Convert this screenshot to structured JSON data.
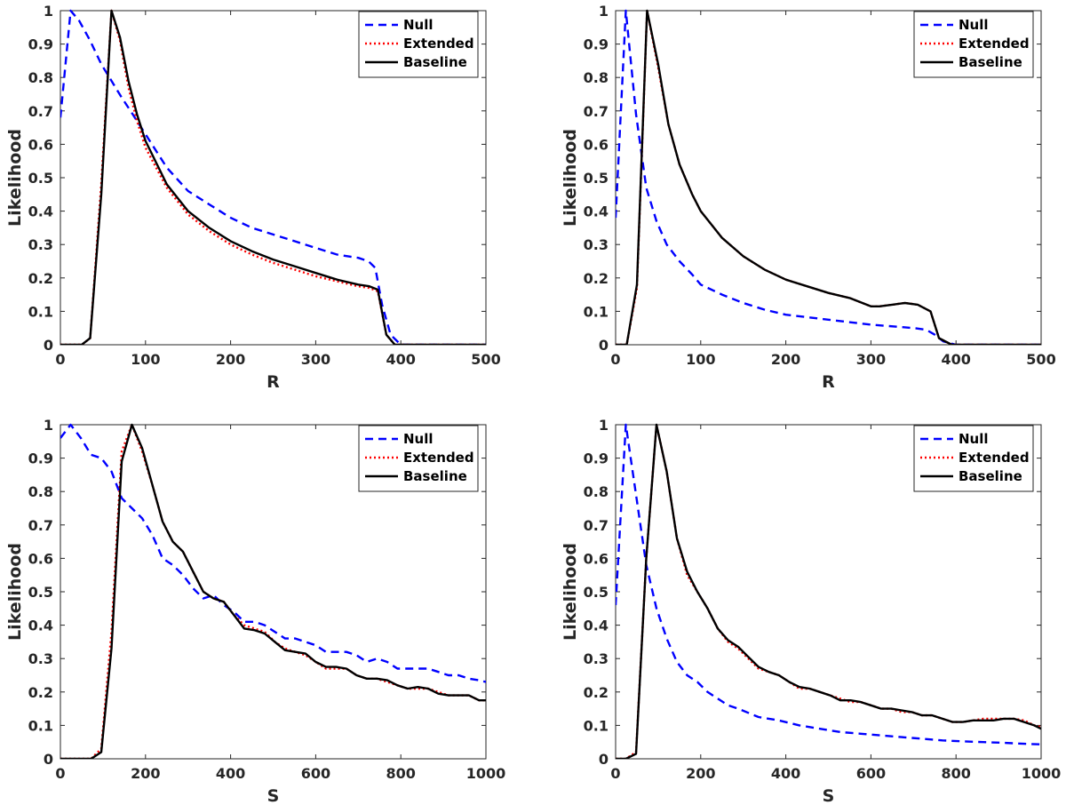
{
  "chart_data": [
    {
      "type": "line",
      "title": "",
      "xlabel": "R",
      "ylabel": "Likelihood",
      "xlim": [
        0,
        500
      ],
      "ylim": [
        0,
        1
      ],
      "xticks": [
        0,
        100,
        200,
        300,
        400,
        500
      ],
      "yticks": [
        0,
        0.1,
        0.2,
        0.3,
        0.4,
        0.5,
        0.6,
        0.7,
        0.8,
        0.9,
        1
      ],
      "ytick_labels": [
        "0",
        "0.1",
        "0.2",
        "0.3",
        "0.4",
        "0.5",
        "0.6",
        "0.7",
        "0.8",
        "0.9",
        "1"
      ],
      "grid": false,
      "legend": "top-right",
      "series": [
        {
          "name": "Null",
          "color": "#0000ff",
          "style": "dashed",
          "x": [
            0,
            12,
            22,
            35,
            48,
            60,
            72,
            85,
            100,
            125,
            150,
            175,
            200,
            225,
            250,
            275,
            300,
            325,
            350,
            362,
            370,
            378,
            388,
            400,
            500
          ],
          "y": [
            0.68,
            1.0,
            0.97,
            0.91,
            0.84,
            0.79,
            0.74,
            0.69,
            0.63,
            0.53,
            0.46,
            0.42,
            0.38,
            0.35,
            0.33,
            0.31,
            0.29,
            0.27,
            0.26,
            0.25,
            0.23,
            0.12,
            0.03,
            0.0,
            0.0
          ]
        },
        {
          "name": "Extended",
          "color": "#ff0000",
          "style": "dotted",
          "x": [
            0,
            25,
            35,
            48,
            60,
            70,
            80,
            90,
            100,
            125,
            150,
            175,
            200,
            225,
            250,
            275,
            300,
            325,
            350,
            363,
            373,
            383,
            393,
            500
          ],
          "y": [
            0,
            0,
            0.02,
            0.48,
            1.0,
            0.91,
            0.77,
            0.67,
            0.59,
            0.47,
            0.39,
            0.34,
            0.3,
            0.27,
            0.245,
            0.225,
            0.205,
            0.19,
            0.175,
            0.17,
            0.16,
            0.03,
            0.0,
            0.0
          ]
        },
        {
          "name": "Baseline",
          "color": "#000000",
          "style": "solid",
          "x": [
            0,
            25,
            35,
            48,
            60,
            70,
            80,
            90,
            100,
            125,
            150,
            175,
            200,
            225,
            250,
            275,
            300,
            325,
            350,
            363,
            373,
            383,
            393,
            500
          ],
          "y": [
            0,
            0,
            0.02,
            0.45,
            1.0,
            0.92,
            0.79,
            0.69,
            0.61,
            0.48,
            0.4,
            0.35,
            0.31,
            0.28,
            0.255,
            0.235,
            0.215,
            0.195,
            0.18,
            0.175,
            0.165,
            0.03,
            0.0,
            0.0
          ]
        }
      ]
    },
    {
      "type": "line",
      "title": "",
      "xlabel": "R",
      "ylabel": "Likelihood",
      "xlim": [
        0,
        500
      ],
      "ylim": [
        0,
        1
      ],
      "xticks": [
        0,
        100,
        200,
        300,
        400,
        500
      ],
      "yticks": [
        0,
        0.1,
        0.2,
        0.3,
        0.4,
        0.5,
        0.6,
        0.7,
        0.8,
        0.9,
        1
      ],
      "ytick_labels": [
        "0",
        "0.1",
        "0.2",
        "0.3",
        "0.4",
        "0.5",
        "0.6",
        "0.7",
        "0.8",
        "0.9",
        "1"
      ],
      "grid": false,
      "legend": "top-right",
      "series": [
        {
          "name": "Null",
          "color": "#0000ff",
          "style": "dashed",
          "x": [
            0,
            12,
            24,
            36,
            48,
            60,
            75,
            90,
            100,
            125,
            150,
            175,
            200,
            250,
            300,
            350,
            365,
            375,
            385,
            400,
            500
          ],
          "y": [
            0.38,
            1.0,
            0.69,
            0.47,
            0.37,
            0.3,
            0.25,
            0.21,
            0.18,
            0.15,
            0.125,
            0.105,
            0.09,
            0.075,
            0.06,
            0.05,
            0.045,
            0.03,
            0.01,
            0.0,
            0.0
          ]
        },
        {
          "name": "Extended",
          "color": "#ff0000",
          "style": "dotted",
          "x": [
            0,
            13,
            25,
            37,
            50,
            62,
            75,
            90,
            100,
            125,
            150,
            175,
            200,
            225,
            250,
            275,
            300,
            310,
            325,
            340,
            355,
            370,
            380,
            395,
            500
          ],
          "y": [
            0,
            0,
            0.17,
            1.0,
            0.83,
            0.66,
            0.54,
            0.45,
            0.4,
            0.32,
            0.265,
            0.225,
            0.195,
            0.175,
            0.155,
            0.14,
            0.115,
            0.115,
            0.12,
            0.125,
            0.12,
            0.1,
            0.02,
            0.0,
            0.0
          ]
        },
        {
          "name": "Baseline",
          "color": "#000000",
          "style": "solid",
          "x": [
            0,
            13,
            25,
            37,
            50,
            62,
            75,
            90,
            100,
            125,
            150,
            175,
            200,
            225,
            250,
            275,
            300,
            310,
            325,
            340,
            355,
            370,
            380,
            395,
            500
          ],
          "y": [
            0,
            0,
            0.18,
            1.0,
            0.84,
            0.66,
            0.54,
            0.45,
            0.4,
            0.32,
            0.265,
            0.225,
            0.195,
            0.175,
            0.155,
            0.14,
            0.115,
            0.115,
            0.12,
            0.125,
            0.12,
            0.1,
            0.02,
            0.0,
            0.0
          ]
        }
      ]
    },
    {
      "type": "line",
      "title": "",
      "xlabel": "S",
      "ylabel": "Likelihood",
      "xlim": [
        0,
        1000
      ],
      "ylim": [
        0,
        1
      ],
      "xticks": [
        0,
        200,
        400,
        600,
        800,
        1000
      ],
      "yticks": [
        0,
        0.1,
        0.2,
        0.3,
        0.4,
        0.5,
        0.6,
        0.7,
        0.8,
        0.9,
        1
      ],
      "ytick_labels": [
        "0",
        "0.1",
        "0.2",
        "0.3",
        "0.4",
        "0.5",
        "0.6",
        "0.7",
        "0.8",
        "0.9",
        "1"
      ],
      "grid": false,
      "legend": "top-right",
      "series": [
        {
          "name": "Null",
          "color": "#0000ff",
          "style": "dashed",
          "x": [
            0,
            24,
            48,
            72,
            96,
            120,
            144,
            168,
            192,
            216,
            240,
            264,
            288,
            312,
            336,
            360,
            384,
            408,
            432,
            456,
            480,
            504,
            528,
            552,
            576,
            600,
            624,
            648,
            672,
            696,
            720,
            744,
            768,
            792,
            816,
            840,
            864,
            888,
            912,
            936,
            960,
            984,
            1000
          ],
          "y": [
            0.96,
            1.0,
            0.96,
            0.91,
            0.9,
            0.86,
            0.78,
            0.75,
            0.72,
            0.67,
            0.6,
            0.58,
            0.55,
            0.51,
            0.48,
            0.49,
            0.46,
            0.44,
            0.41,
            0.41,
            0.4,
            0.38,
            0.36,
            0.36,
            0.35,
            0.34,
            0.32,
            0.32,
            0.32,
            0.31,
            0.29,
            0.3,
            0.29,
            0.27,
            0.27,
            0.27,
            0.27,
            0.26,
            0.25,
            0.25,
            0.24,
            0.235,
            0.23
          ]
        },
        {
          "name": "Extended",
          "color": "#ff0000",
          "style": "dotted",
          "x": [
            0,
            72,
            96,
            120,
            144,
            168,
            192,
            216,
            240,
            264,
            288,
            312,
            336,
            360,
            384,
            408,
            432,
            456,
            480,
            504,
            528,
            552,
            576,
            600,
            624,
            648,
            672,
            696,
            720,
            744,
            768,
            792,
            816,
            840,
            864,
            888,
            912,
            936,
            960,
            984,
            1000
          ],
          "y": [
            0,
            0,
            0.03,
            0.38,
            0.92,
            1.0,
            0.92,
            0.82,
            0.71,
            0.65,
            0.62,
            0.56,
            0.5,
            0.48,
            0.47,
            0.43,
            0.4,
            0.39,
            0.38,
            0.35,
            0.33,
            0.32,
            0.31,
            0.29,
            0.27,
            0.27,
            0.27,
            0.25,
            0.24,
            0.24,
            0.23,
            0.22,
            0.21,
            0.21,
            0.21,
            0.2,
            0.19,
            0.19,
            0.19,
            0.175,
            0.175
          ]
        },
        {
          "name": "Baseline",
          "color": "#000000",
          "style": "solid",
          "x": [
            0,
            72,
            96,
            120,
            144,
            168,
            192,
            216,
            240,
            264,
            288,
            312,
            336,
            360,
            384,
            408,
            432,
            456,
            480,
            504,
            528,
            552,
            576,
            600,
            624,
            648,
            672,
            696,
            720,
            744,
            768,
            792,
            816,
            840,
            864,
            888,
            912,
            936,
            960,
            984,
            1000
          ],
          "y": [
            0,
            0,
            0.02,
            0.33,
            0.89,
            1.0,
            0.93,
            0.82,
            0.71,
            0.65,
            0.62,
            0.56,
            0.5,
            0.48,
            0.47,
            0.43,
            0.39,
            0.385,
            0.375,
            0.35,
            0.325,
            0.32,
            0.315,
            0.29,
            0.275,
            0.275,
            0.27,
            0.25,
            0.24,
            0.24,
            0.235,
            0.22,
            0.21,
            0.215,
            0.21,
            0.195,
            0.19,
            0.19,
            0.19,
            0.175,
            0.175
          ]
        }
      ]
    },
    {
      "type": "line",
      "title": "",
      "xlabel": "S",
      "ylabel": "Likelihood",
      "xlim": [
        0,
        1000
      ],
      "ylim": [
        0,
        1
      ],
      "xticks": [
        0,
        200,
        400,
        600,
        800,
        1000
      ],
      "yticks": [
        0,
        0.1,
        0.2,
        0.3,
        0.4,
        0.5,
        0.6,
        0.7,
        0.8,
        0.9,
        1
      ],
      "ytick_labels": [
        "0",
        "0.1",
        "0.2",
        "0.3",
        "0.4",
        "0.5",
        "0.6",
        "0.7",
        "0.8",
        "0.9",
        "1"
      ],
      "grid": false,
      "legend": "top-right",
      "series": [
        {
          "name": "Null",
          "color": "#0000ff",
          "style": "dashed",
          "x": [
            0,
            24,
            48,
            72,
            96,
            120,
            144,
            168,
            192,
            216,
            240,
            264,
            288,
            336,
            384,
            432,
            480,
            528,
            576,
            624,
            672,
            720,
            768,
            816,
            864,
            912,
            960,
            1000
          ],
          "y": [
            0.46,
            1.0,
            0.79,
            0.58,
            0.45,
            0.36,
            0.29,
            0.25,
            0.23,
            0.2,
            0.18,
            0.16,
            0.15,
            0.125,
            0.115,
            0.1,
            0.09,
            0.08,
            0.075,
            0.07,
            0.065,
            0.06,
            0.055,
            0.052,
            0.05,
            0.048,
            0.045,
            0.043
          ]
        },
        {
          "name": "Extended",
          "color": "#ff0000",
          "style": "dotted",
          "x": [
            0,
            24,
            48,
            72,
            96,
            120,
            144,
            168,
            192,
            216,
            240,
            264,
            288,
            312,
            336,
            360,
            384,
            408,
            432,
            456,
            480,
            504,
            528,
            552,
            576,
            600,
            624,
            648,
            672,
            696,
            720,
            744,
            768,
            792,
            816,
            840,
            864,
            888,
            912,
            936,
            960,
            984,
            1000
          ],
          "y": [
            0,
            0,
            0.02,
            0.6,
            1.0,
            0.86,
            0.66,
            0.55,
            0.5,
            0.45,
            0.39,
            0.35,
            0.33,
            0.3,
            0.27,
            0.26,
            0.25,
            0.23,
            0.21,
            0.21,
            0.2,
            0.19,
            0.18,
            0.17,
            0.17,
            0.16,
            0.15,
            0.15,
            0.14,
            0.14,
            0.13,
            0.13,
            0.12,
            0.11,
            0.11,
            0.115,
            0.12,
            0.12,
            0.12,
            0.12,
            0.115,
            0.1,
            0.095
          ]
        },
        {
          "name": "Baseline",
          "color": "#000000",
          "style": "solid",
          "x": [
            0,
            24,
            48,
            72,
            96,
            120,
            144,
            168,
            192,
            216,
            240,
            264,
            288,
            312,
            336,
            360,
            384,
            408,
            432,
            456,
            480,
            504,
            528,
            552,
            576,
            600,
            624,
            648,
            672,
            696,
            720,
            744,
            768,
            792,
            816,
            840,
            864,
            888,
            912,
            936,
            960,
            984,
            1000
          ],
          "y": [
            0,
            0,
            0.015,
            0.6,
            1.0,
            0.86,
            0.66,
            0.56,
            0.5,
            0.45,
            0.39,
            0.355,
            0.335,
            0.305,
            0.275,
            0.26,
            0.25,
            0.23,
            0.215,
            0.21,
            0.2,
            0.19,
            0.175,
            0.175,
            0.17,
            0.16,
            0.15,
            0.15,
            0.145,
            0.14,
            0.13,
            0.13,
            0.12,
            0.11,
            0.11,
            0.115,
            0.115,
            0.115,
            0.12,
            0.12,
            0.11,
            0.1,
            0.09
          ]
        }
      ]
    }
  ]
}
